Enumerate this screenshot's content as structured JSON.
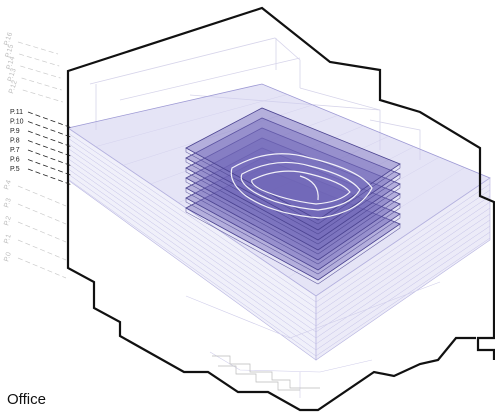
{
  "diagram": {
    "caption": "Office",
    "colors": {
      "outline": "#111111",
      "slab_fill": "#b9b6e6",
      "slab_edge": "#8a86c8",
      "highlight_floor": "#6f66b8",
      "highlight_edge": "#4a4290",
      "faint_line": "#c9c6e8",
      "leader_dark": "#222222",
      "leader_faint": "#cccccc"
    },
    "floor_labels_dark": [
      "P.11",
      "P.10",
      "P.9",
      "P.8",
      "P.7",
      "P.6",
      "P.5"
    ],
    "floor_labels_faint": [
      "P.16",
      "P.15",
      "P.14",
      "P.13",
      "P.12",
      "P.4",
      "P.3",
      "P.2",
      "P.1",
      "P.0"
    ],
    "highlighted_floors": 7
  }
}
